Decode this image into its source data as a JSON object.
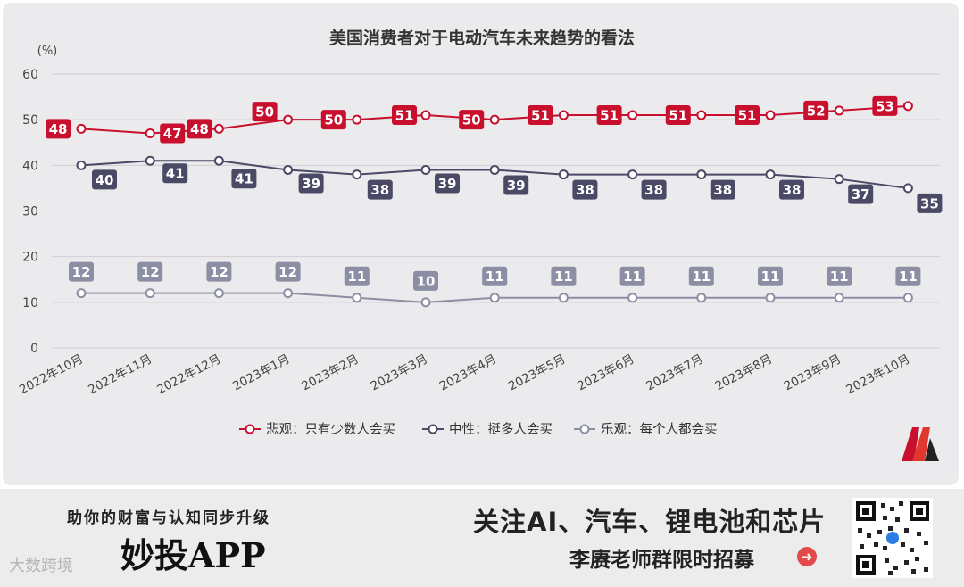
{
  "chart_data": {
    "type": "line",
    "title": "美国消费者对于电动汽车未来趋势的看法",
    "yunit": "(%)",
    "ylim": [
      0,
      60
    ],
    "yticks": [
      0,
      10,
      20,
      30,
      40,
      50,
      60
    ],
    "grid": true,
    "legend_position": "bottom",
    "categories": [
      "2022年10月",
      "2022年11月",
      "2022年12月",
      "2023年1月",
      "2023年2月",
      "2023年3月",
      "2023年4月",
      "2023年5月",
      "2023年6月",
      "2023年7月",
      "2023年8月",
      "2023年9月",
      "2023年10月"
    ],
    "series": [
      {
        "name": "悲观：只有少数人会买",
        "color": "#c8102e",
        "values": [
          48,
          47,
          48,
          50,
          50,
          51,
          50,
          51,
          51,
          51,
          51,
          52,
          53
        ]
      },
      {
        "name": "中性：挺多人会买",
        "color": "#4a4a66",
        "values": [
          40,
          41,
          41,
          39,
          38,
          39,
          39,
          38,
          38,
          38,
          38,
          37,
          35
        ]
      },
      {
        "name": "乐观：每个人都会买",
        "color": "#8c8ea3",
        "values": [
          12,
          12,
          12,
          12,
          11,
          10,
          11,
          11,
          11,
          11,
          11,
          11,
          11
        ]
      }
    ]
  },
  "banner": {
    "slogan": "助你的财富与认知同步升级",
    "app_name": "妙投APP",
    "headline": "关注AI、汽车、锂电池和芯片",
    "subline": "李赓老师群限时招募",
    "watermark": "大数跨境"
  }
}
